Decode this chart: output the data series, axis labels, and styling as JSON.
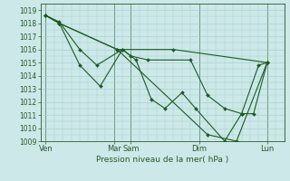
{
  "xlabel": "Pression niveau de la mer( hPa )",
  "background_color": "#cce8e8",
  "grid_color": "#a8cccc",
  "line_color": "#1a5c20",
  "vline_color": "#2a5a2a",
  "ylim": [
    1009,
    1019.5
  ],
  "yticks": [
    1009,
    1010,
    1011,
    1012,
    1013,
    1014,
    1015,
    1016,
    1017,
    1018,
    1019
  ],
  "xtick_labels": [
    "Ven",
    "Mar",
    "Sam",
    "Dim",
    "Lun"
  ],
  "xtick_positions": [
    0,
    4,
    5,
    9,
    13
  ],
  "vline_positions": [
    0,
    4,
    5,
    9,
    13
  ],
  "xlim": [
    -0.3,
    14.0
  ],
  "series": [
    [
      0.0,
      1018.6,
      0.8,
      1018.1,
      2.0,
      1016.0,
      3.0,
      1014.8,
      4.5,
      1016.0,
      5.0,
      1015.5,
      6.0,
      1015.2,
      8.5,
      1015.2,
      9.5,
      1012.5,
      10.5,
      1011.5,
      11.5,
      1011.1,
      12.5,
      1014.8,
      13.0,
      1015.0
    ],
    [
      0.0,
      1018.6,
      0.8,
      1018.0,
      2.0,
      1014.8,
      3.2,
      1013.2,
      4.5,
      1016.0,
      5.3,
      1015.2,
      6.2,
      1012.2,
      7.0,
      1011.5,
      8.0,
      1012.7,
      8.8,
      1011.5,
      10.5,
      1009.0,
      11.5,
      1011.1,
      12.2,
      1011.1,
      13.0,
      1015.0
    ],
    [
      0.0,
      1018.6,
      0.8,
      1018.0,
      4.2,
      1016.0,
      7.5,
      1016.0,
      13.0,
      1015.0
    ],
    [
      0.0,
      1018.6,
      0.8,
      1018.0,
      4.2,
      1016.0,
      9.5,
      1009.5,
      11.2,
      1009.0,
      13.0,
      1015.0
    ]
  ],
  "marker": "D",
  "marker_size": 2.0,
  "line_width": 0.8,
  "ytick_fontsize": 5.5,
  "xtick_fontsize": 6.0,
  "xlabel_fontsize": 6.5
}
